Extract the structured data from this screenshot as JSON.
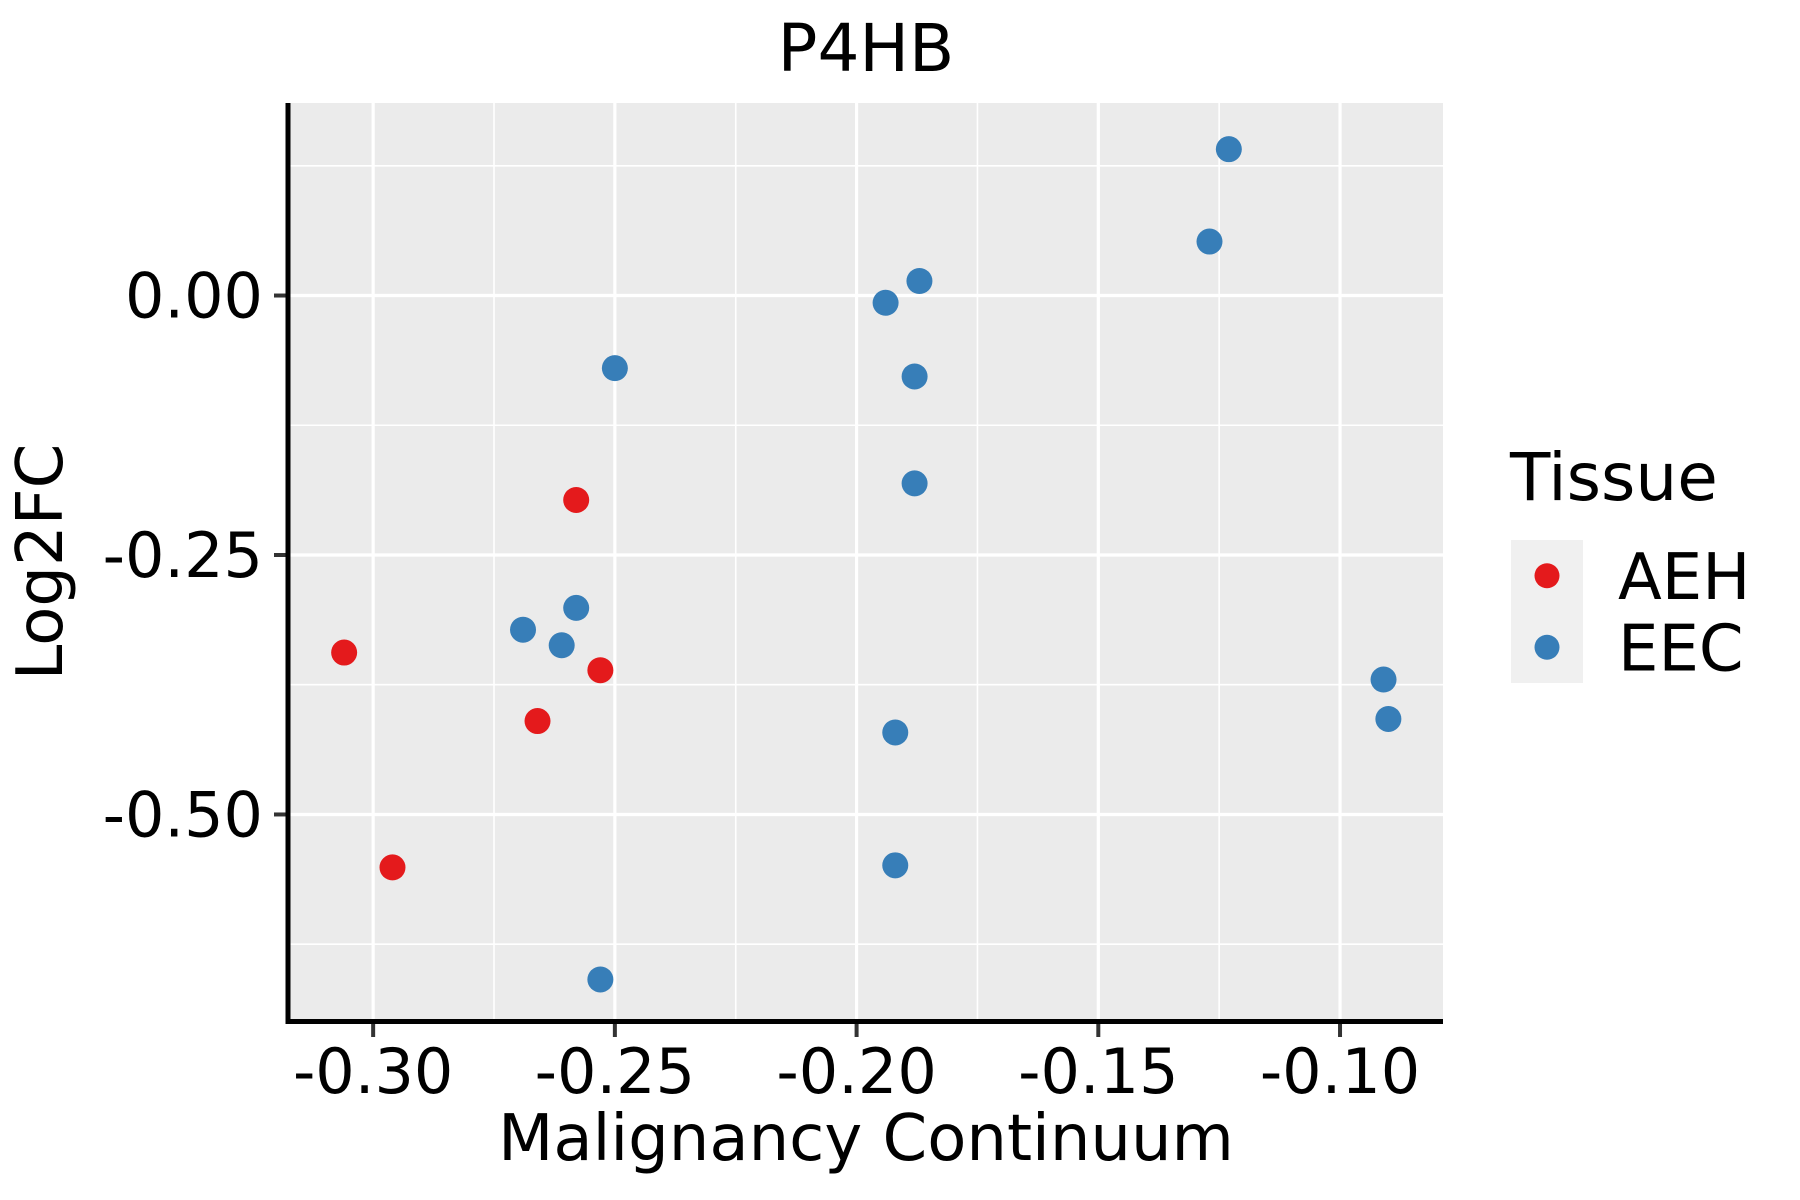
{
  "title": "P4HB",
  "chart_data": {
    "type": "scatter",
    "title": "P4HB",
    "xlabel": "Malignancy Continuum",
    "ylabel": "Log2FC",
    "xlim": [
      -0.3172,
      -0.0787
    ],
    "ylim": [
      -0.699,
      0.1855
    ],
    "xticks": {
      "values": [
        -0.3,
        -0.25,
        -0.2,
        -0.15,
        -0.1
      ],
      "labels": [
        "-0.30",
        "-0.25",
        "-0.20",
        "-0.15",
        "-0.10"
      ]
    },
    "yticks": {
      "values": [
        0.0,
        -0.25,
        -0.5
      ],
      "labels": [
        "0.00",
        "-0.25",
        "-0.50"
      ]
    },
    "grid": {
      "major": true,
      "minor": true
    },
    "legend": {
      "title": "Tissue",
      "position": "right",
      "entries": [
        {
          "label": "AEH",
          "color": "#E41A1C"
        },
        {
          "label": "EEC",
          "color": "#377EB8"
        }
      ]
    },
    "series": [
      {
        "name": "AEH",
        "color": "#E41A1C",
        "points": [
          [
            -0.306,
            -0.344
          ],
          [
            -0.296,
            -0.551
          ],
          [
            -0.266,
            -0.41
          ],
          [
            -0.258,
            -0.197
          ],
          [
            -0.253,
            -0.361
          ]
        ]
      },
      {
        "name": "EEC",
        "color": "#377EB8",
        "points": [
          [
            -0.269,
            -0.322
          ],
          [
            -0.261,
            -0.337
          ],
          [
            -0.258,
            -0.301
          ],
          [
            -0.253,
            -0.659
          ],
          [
            -0.25,
            -0.07
          ],
          [
            -0.194,
            -0.007
          ],
          [
            -0.192,
            -0.421
          ],
          [
            -0.192,
            -0.549
          ],
          [
            -0.188,
            -0.078
          ],
          [
            -0.188,
            -0.181
          ],
          [
            -0.187,
            0.014
          ],
          [
            -0.127,
            0.052
          ],
          [
            -0.123,
            0.141
          ],
          [
            -0.091,
            -0.37
          ],
          [
            -0.09,
            -0.408
          ]
        ]
      }
    ],
    "styles": {
      "panel_bg": "#EBEBEB",
      "grid_color": "#FFFFFF",
      "axis_color": "#000000",
      "tick_color": "#333333",
      "legend_key_bg": "#F0F0F0",
      "point_radius": 13
    }
  }
}
